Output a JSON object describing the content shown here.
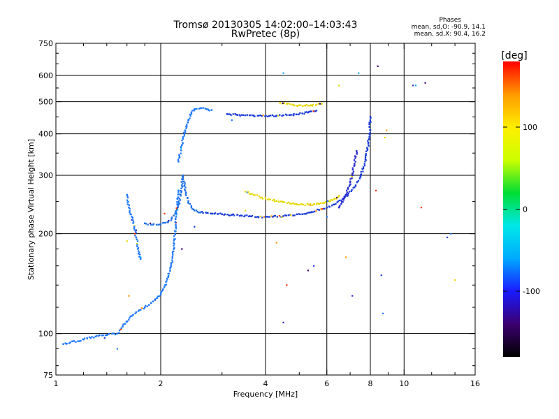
{
  "chart_data": {
    "type": "scatter",
    "title": "Tromsø 20130305 14:02:00–14:03:43",
    "subtitle": "RwPretec (8p)",
    "xlabel": "Frequency [MHz]",
    "ylabel": "Stationary phase Virtual Height [km]",
    "xscale": "log",
    "yscale": "log",
    "xlim": [
      1,
      16
    ],
    "ylim": [
      75,
      750
    ],
    "x_ticks": [
      1,
      2,
      4,
      6,
      8,
      10,
      16
    ],
    "y_ticks": [
      75,
      100,
      200,
      300,
      400,
      500,
      600,
      750
    ],
    "x_gridlines": [
      2,
      4,
      6,
      8,
      10
    ],
    "y_gridlines": [
      100,
      200,
      300,
      400,
      500,
      600
    ],
    "legend": {
      "heading": "Phases",
      "line_o": "mean, sd,O: -90.9, 14.1",
      "line_x": "mean, sd,X:  90.4, 16.2"
    },
    "colorbar": {
      "label": "[deg]",
      "range": [
        -180,
        180
      ],
      "ticks": [
        100,
        0,
        -100
      ],
      "stops": [
        "#000000",
        "#3c0070",
        "#1a1aff",
        "#00aaff",
        "#00e8e8",
        "#00dd33",
        "#ccff00",
        "#ffee00",
        "#ff9900",
        "#ff0000"
      ]
    },
    "series": [
      {
        "name": "",
        "phase": -100,
        "color": "#1a3cd8",
        "x": [
          3.1,
          3.3,
          3.5,
          3.7,
          3.9,
          4.1,
          4.3,
          4.5,
          4.7,
          4.9,
          5.1,
          5.3,
          5.6
        ],
        "y": [
          459,
          457,
          455,
          454,
          453,
          453,
          454,
          455,
          456,
          458,
          461,
          464,
          470
        ]
      },
      {
        "name": "",
        "phase": 110,
        "color": "#e8d800",
        "x": [
          4.4,
          4.6,
          4.8,
          5.0,
          5.2,
          5.4,
          5.6,
          5.8
        ],
        "y": [
          496,
          492,
          490,
          488,
          487,
          488,
          490,
          493
        ]
      },
      {
        "name": "",
        "phase": -95,
        "color": "#1a3cd8",
        "x": [
          2.6,
          2.8,
          3.0,
          3.2,
          3.4,
          3.6,
          3.8,
          4.0,
          4.2,
          4.5,
          4.8,
          5.1,
          5.4,
          5.7,
          6.0,
          6.3,
          6.6,
          6.9,
          7.2,
          7.5,
          7.7,
          7.85,
          7.95,
          8.0
        ],
        "y": [
          232,
          230,
          229,
          228,
          227,
          226,
          225,
          225,
          225,
          226,
          227,
          229,
          232,
          236,
          240,
          245,
          252,
          262,
          276,
          298,
          325,
          360,
          400,
          450
        ]
      },
      {
        "name": "",
        "phase": 120,
        "color": "#e8d800",
        "x": [
          3.5,
          3.7,
          3.9,
          4.1,
          4.3,
          4.5,
          4.7,
          4.9,
          5.1,
          5.3,
          5.5,
          5.7,
          5.9,
          6.1,
          6.3,
          6.5
        ],
        "y": [
          268,
          262,
          257,
          254,
          251,
          249,
          247,
          246,
          245,
          245,
          245,
          246,
          248,
          251,
          255,
          260
        ]
      },
      {
        "name": "",
        "phase": -110,
        "color": "#2a2ad0",
        "x": [
          6.5,
          6.6,
          6.7,
          6.8,
          6.9,
          7.0,
          7.1,
          7.2,
          7.3
        ],
        "y": [
          240,
          246,
          253,
          262,
          273,
          286,
          303,
          325,
          355
        ]
      },
      {
        "name": "",
        "phase": -90,
        "color": "#2070e8",
        "x": [
          1.8,
          1.9,
          2.0,
          2.1,
          2.15,
          2.2,
          2.25,
          2.28,
          2.3,
          2.32,
          2.35,
          2.4,
          2.45,
          2.5,
          2.55,
          2.6
        ],
        "y": [
          215,
          213,
          214,
          217,
          222,
          230,
          245,
          262,
          280,
          300,
          270,
          250,
          240,
          235,
          233,
          232
        ]
      },
      {
        "name": "",
        "phase": -85,
        "color": "#1e78ff",
        "x": [
          1.05,
          1.1,
          1.2,
          1.3,
          1.4,
          1.5,
          1.58,
          1.65,
          1.7,
          1.75,
          1.8,
          1.85,
          1.9,
          1.95,
          2.0,
          2.03,
          2.06,
          2.1,
          2.14,
          2.18,
          2.2,
          2.22,
          2.25
        ],
        "y": [
          93,
          94,
          96,
          98,
          99,
          100,
          107,
          113,
          116,
          118,
          120,
          122,
          125,
          128,
          131,
          136,
          140,
          148,
          160,
          180,
          200,
          230,
          270
        ]
      },
      {
        "name": "",
        "phase": -100,
        "color": "#1e78ff",
        "x": [
          1.6,
          1.62,
          1.65,
          1.68,
          1.7,
          1.72,
          1.75
        ],
        "y": [
          262,
          240,
          225,
          210,
          195,
          180,
          168
        ]
      },
      {
        "name": "",
        "phase": -100,
        "color": "#1e78ff",
        "x": [
          2.25,
          2.3,
          2.35,
          2.4,
          2.45,
          2.5,
          2.6,
          2.7,
          2.8
        ],
        "y": [
          330,
          370,
          410,
          440,
          460,
          475,
          478,
          475,
          472
        ]
      },
      {
        "name": "",
        "phase": 0,
        "color": "#888888",
        "x": [
          1.38,
          1.5,
          1.6,
          1.62,
          1.7,
          1.75,
          2.05,
          2.3,
          2.5,
          3.2,
          3.5,
          4.3,
          4.5,
          4.5,
          4.6,
          5.3,
          5.5,
          6.0,
          6.5,
          6.8,
          7.1,
          7.4,
          8.3,
          8.4,
          8.6,
          8.7,
          8.8,
          8.9,
          10.6,
          10.8,
          11.2,
          11.5,
          13.3,
          13.6,
          14.0
        ],
        "y": [
          97,
          90,
          190,
          130,
          205,
          170,
          230,
          180,
          210,
          440,
          235,
          188,
          108,
          610,
          140,
          155,
          160,
          225,
          560,
          170,
          130,
          610,
          270,
          640,
          150,
          115,
          390,
          410,
          560,
          560,
          240,
          570,
          195,
          200,
          145
        ]
      }
    ]
  }
}
